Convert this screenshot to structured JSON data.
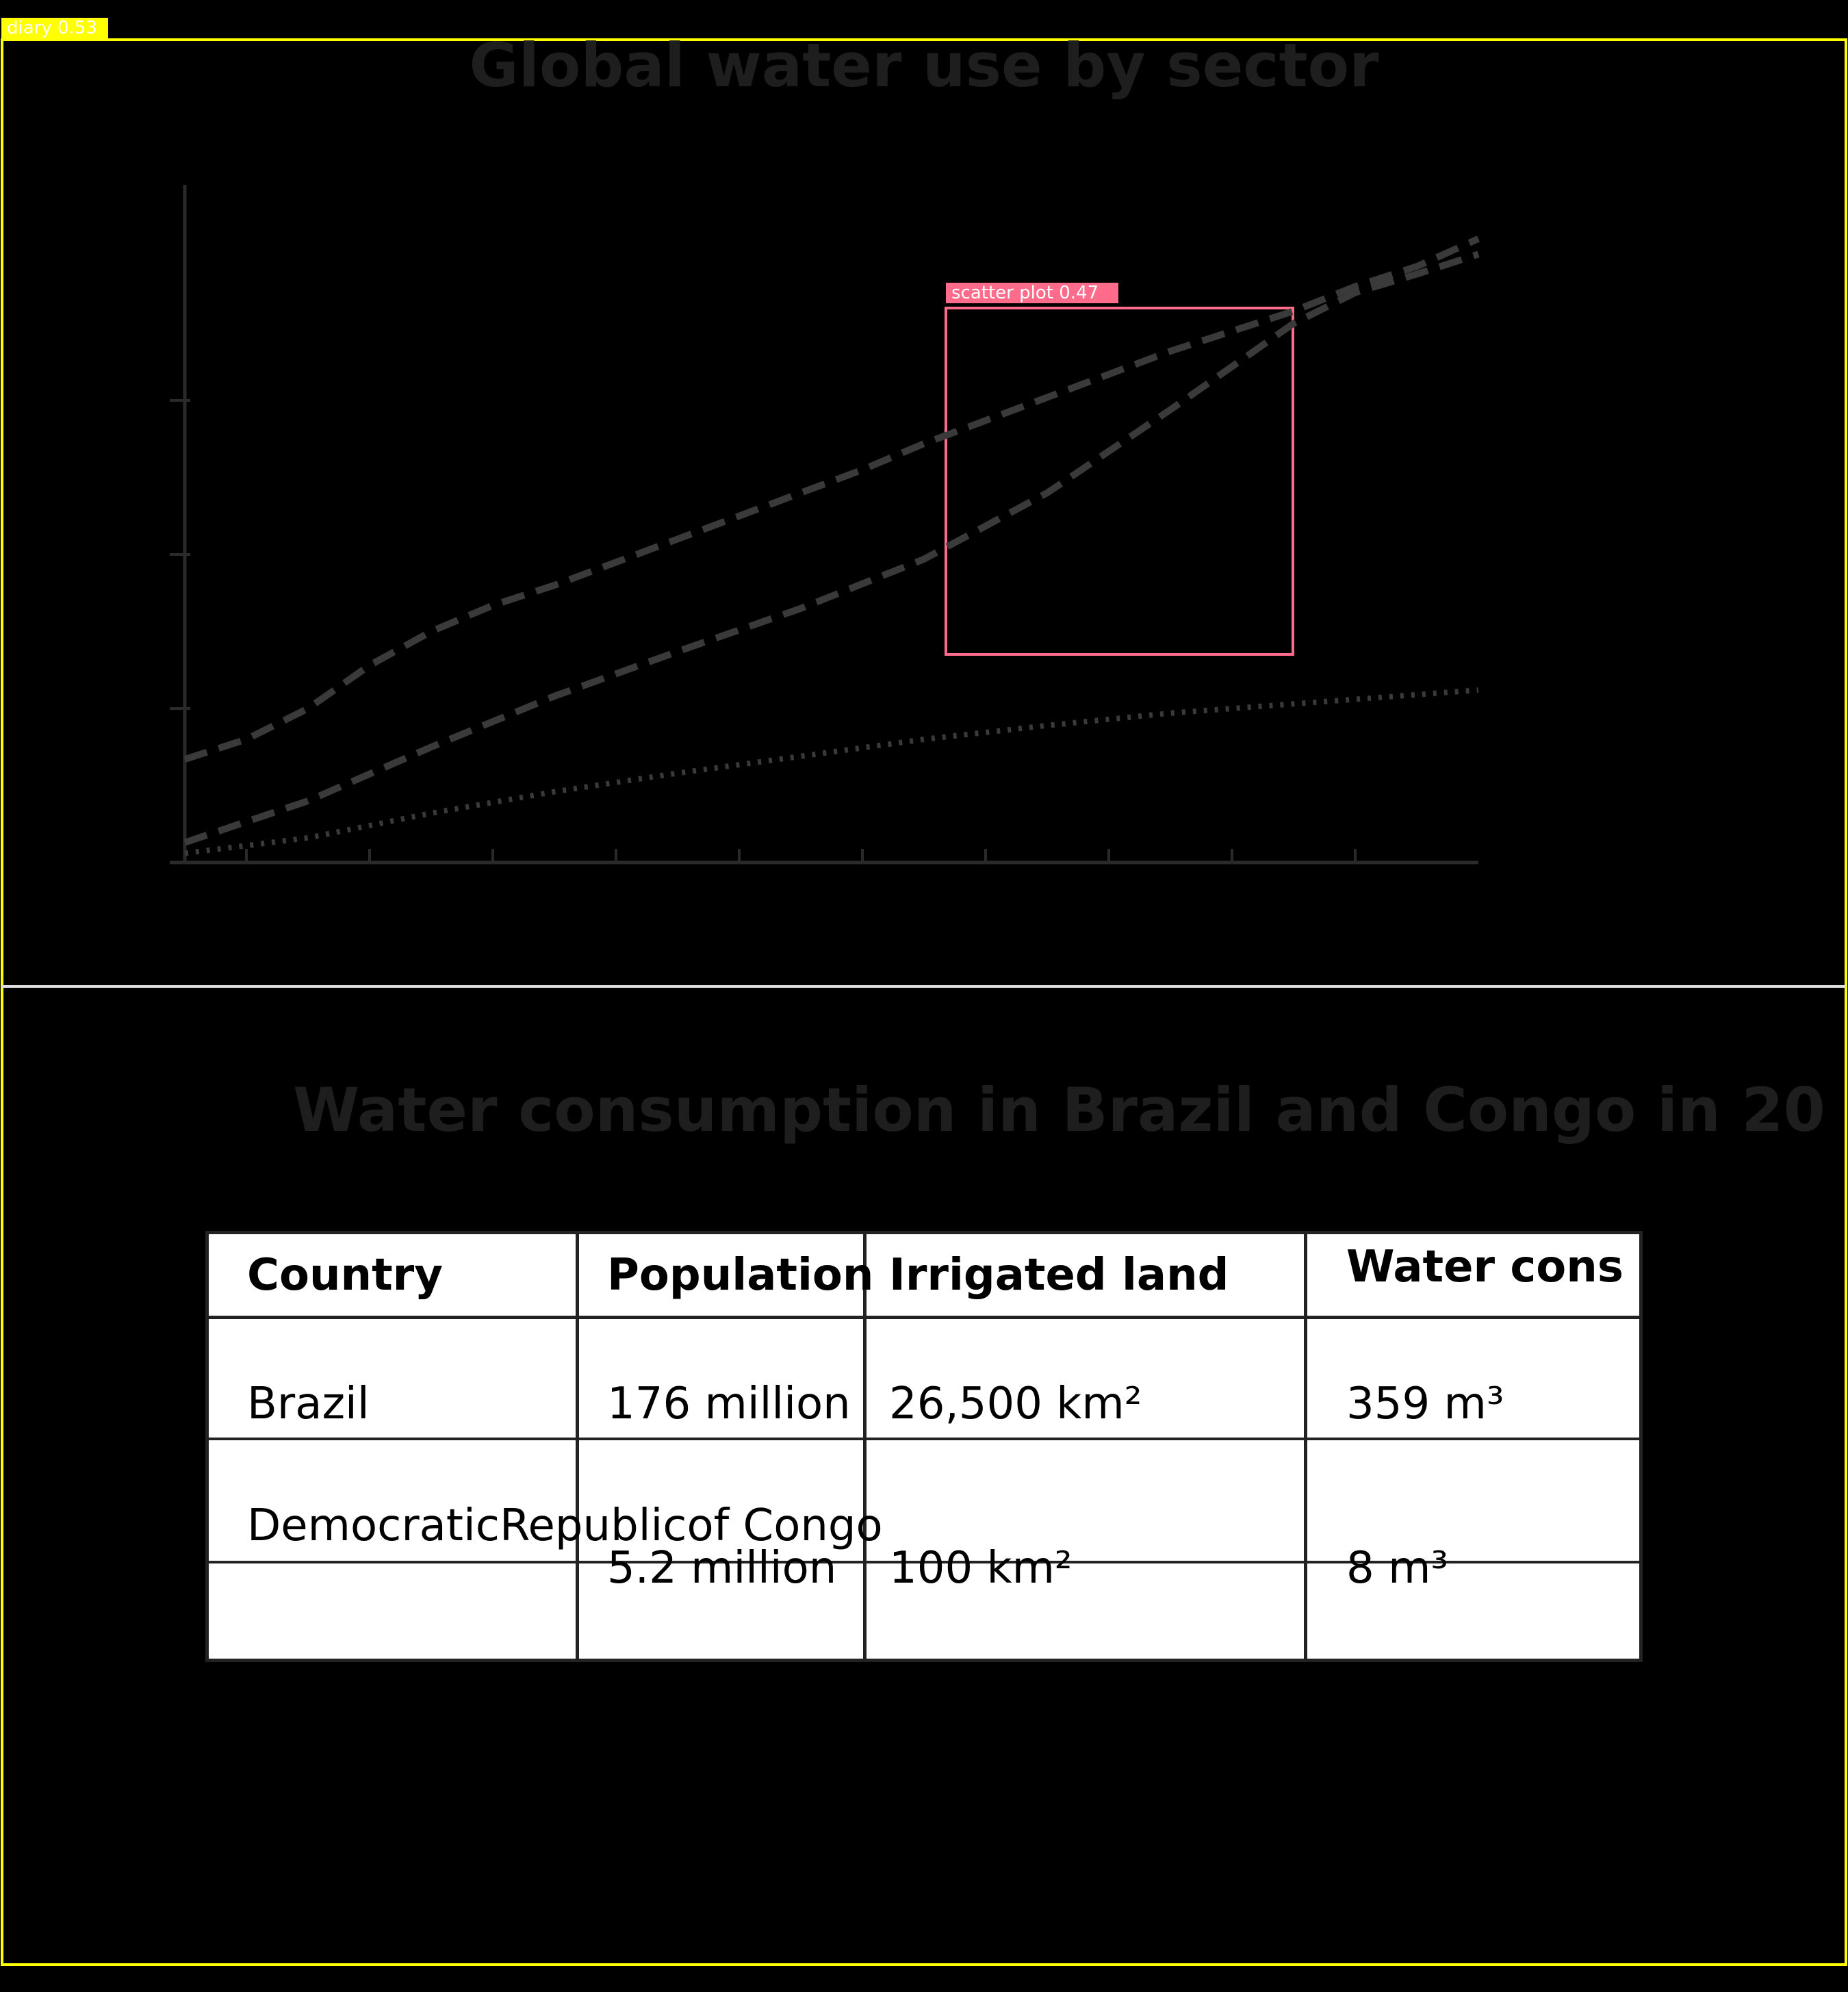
{
  "detections": [
    {
      "label": "diary 0.53",
      "color": "#ffff00"
    },
    {
      "label": "scatter plot 0.47",
      "color": "#ff6b8a"
    }
  ],
  "chart_data": {
    "type": "line",
    "title": "Global water use by sector",
    "xlabel": "",
    "ylabel": "",
    "x_ticks": 10,
    "y_ticks": 3,
    "line_color": "#3a3a3a",
    "axis_color": "#2a2a2a",
    "grid": false,
    "ylim": [
      0,
      4.4
    ],
    "series": [
      {
        "style": "dashed",
        "points": [
          [
            0,
            0.67
          ],
          [
            0.5,
            0.8
          ],
          [
            1,
            1
          ],
          [
            1.5,
            1.28
          ],
          [
            2,
            1.5
          ],
          [
            2.5,
            1.67
          ],
          [
            3,
            1.8
          ],
          [
            3.5,
            1.95
          ],
          [
            4,
            2.1
          ],
          [
            4.5,
            2.25
          ],
          [
            5,
            2.4
          ],
          [
            5.5,
            2.55
          ],
          [
            6,
            2.72
          ],
          [
            6.5,
            2.87
          ],
          [
            7,
            3.02
          ],
          [
            7.5,
            3.17
          ],
          [
            8,
            3.32
          ],
          [
            8.5,
            3.45
          ],
          [
            9,
            3.58
          ],
          [
            9.5,
            3.74
          ],
          [
            10,
            3.87
          ],
          [
            10.5,
            4.05
          ]
        ]
      },
      {
        "style": "dashed",
        "points": [
          [
            0,
            0.13
          ],
          [
            1,
            0.4
          ],
          [
            2,
            0.75
          ],
          [
            3,
            1.08
          ],
          [
            4,
            1.37
          ],
          [
            5,
            1.65
          ],
          [
            6,
            1.97
          ],
          [
            7,
            2.4
          ],
          [
            8,
            2.94
          ],
          [
            9,
            3.5
          ],
          [
            9.5,
            3.7
          ],
          [
            10,
            3.82
          ],
          [
            10.5,
            3.95
          ]
        ]
      },
      {
        "style": "dotted",
        "points": [
          [
            0,
            0.06
          ],
          [
            1,
            0.16
          ],
          [
            2,
            0.32
          ],
          [
            3,
            0.46
          ],
          [
            4,
            0.58
          ],
          [
            5,
            0.69
          ],
          [
            6,
            0.8
          ],
          [
            7,
            0.89
          ],
          [
            8,
            0.97
          ],
          [
            9,
            1.03
          ],
          [
            10,
            1.09
          ],
          [
            10.5,
            1.12
          ]
        ]
      }
    ]
  },
  "table": {
    "title": "Water consumption in Brazil and Congo in 20",
    "headers": [
      "Country",
      "Population",
      "Irrigated land",
      "Water cons"
    ],
    "rows": [
      [
        "Brazil",
        "176 million",
        "26,500 km²",
        "359 m³"
      ],
      [
        "DemocraticRepublicof Congo",
        "5.2 million",
        "100 km²",
        "8 m³"
      ]
    ]
  }
}
